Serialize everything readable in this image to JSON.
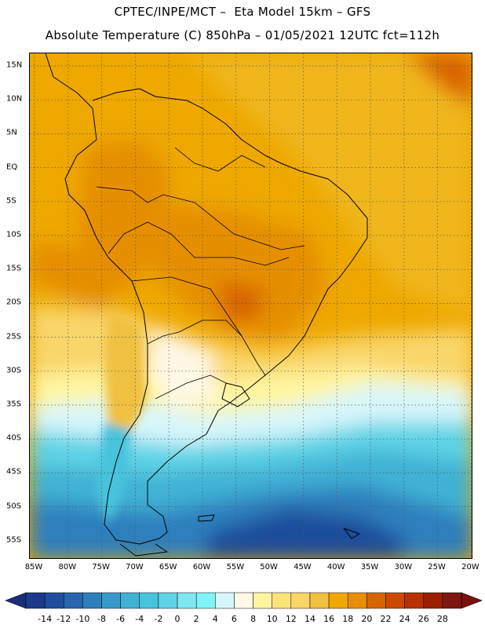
{
  "title_line1": "CPTEC/INPE/MCT –  Eta Model 15km – GFS",
  "title_line2": "Absolute Temperature (C) 850hPa – 01/05/2021 12UTC fct=112h",
  "lat_labels": [
    "15N",
    "10N",
    "5N",
    "EQ",
    "5S",
    "10S",
    "15S",
    "20S",
    "25S",
    "30S",
    "35S",
    "40S",
    "45S",
    "50S",
    "55S"
  ],
  "lon_labels": [
    "85W",
    "80W",
    "75W",
    "70W",
    "65W",
    "60W",
    "55W",
    "50W",
    "45W",
    "40W",
    "35W",
    "30W",
    "25W",
    "20W"
  ],
  "colorbar_labels": [
    "-14",
    "-12",
    "-10",
    "-8",
    "-6",
    "-4",
    "-2",
    "0",
    "2",
    "4",
    "6",
    "8",
    "10",
    "12",
    "14",
    "16",
    "18",
    "20",
    "22",
    "24",
    "26",
    "28"
  ],
  "colorbar_colors": [
    "#1c3a8c",
    "#1f4e9c",
    "#2a66ad",
    "#2f7fbd",
    "#3799c9",
    "#3fb1d4",
    "#47c3dc",
    "#5fd3e6",
    "#7fe6f2",
    "#7ef4f9",
    "#d7f6fb",
    "#fff8e6",
    "#fff5a0",
    "#fbe37a",
    "#f9d66a",
    "#f0c040",
    "#eea800",
    "#e58f00",
    "#d86400",
    "#cc4a00",
    "#b83200",
    "#9c2000",
    "#7c1810"
  ],
  "colorbar_under": "#1a2e7a",
  "colorbar_over": "#7a1010"
}
